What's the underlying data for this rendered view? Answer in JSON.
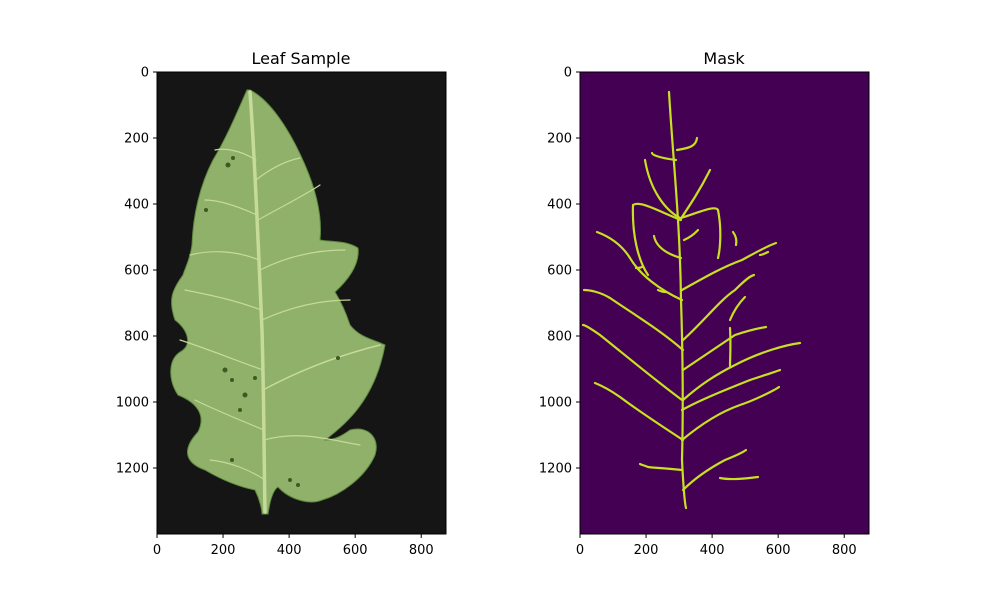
{
  "chart_data": [
    {
      "type": "image",
      "title": "Leaf Sample",
      "xlabel": "",
      "ylabel": "",
      "xlim": [
        0,
        875
      ],
      "ylim": [
        1400,
        0
      ],
      "xticks": [
        0,
        200,
        400,
        600,
        800
      ],
      "yticks": [
        0,
        200,
        400,
        600,
        800,
        1000,
        1200
      ],
      "content": "photo of green leaf on dark textured background",
      "colors": {
        "background": "#151515",
        "leaf": "#8fb16a",
        "leaf_edge": "#5f8a3f",
        "vein": "#c6da9a"
      }
    },
    {
      "type": "image",
      "title": "Mask",
      "xlabel": "",
      "ylabel": "",
      "xlim": [
        0,
        875
      ],
      "ylim": [
        1400,
        0
      ],
      "xticks": [
        0,
        200,
        400,
        600,
        800
      ],
      "yticks": [
        0,
        200,
        400,
        600,
        800,
        1000,
        1200
      ],
      "content": "binary vein segmentation mask (viridis colormap)",
      "colors": {
        "background": "#440154",
        "vein": "#c8e020",
        "vein_alt": "#22a884"
      }
    }
  ]
}
